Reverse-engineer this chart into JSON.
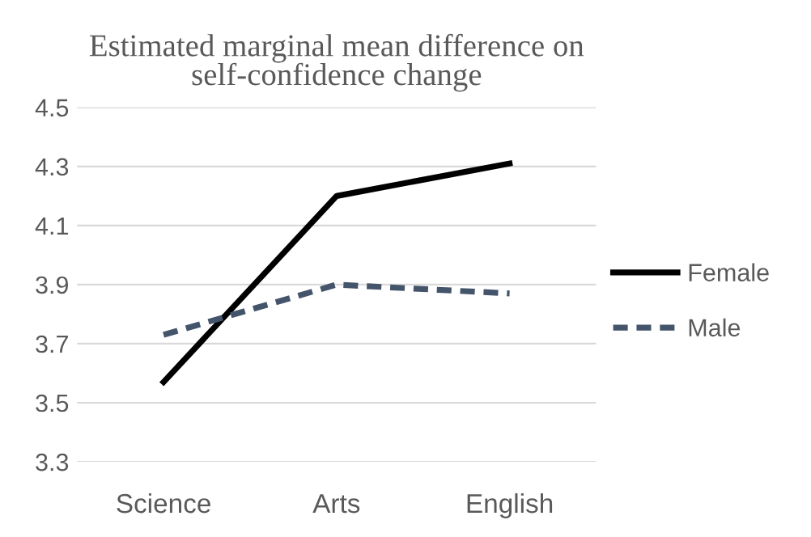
{
  "chart_data": {
    "type": "line",
    "title": "Estimated marginal mean difference on\nself-confidence change",
    "categories": [
      "Science",
      "Arts",
      "English"
    ],
    "series": [
      {
        "name": "Female",
        "color": "#000000",
        "line_style": "solid",
        "values": [
          3.57,
          4.2,
          4.31
        ]
      },
      {
        "name": "Male",
        "color": "#44546a",
        "line_style": "dashed",
        "values": [
          3.73,
          3.9,
          3.87
        ]
      }
    ],
    "ylim": [
      3.3,
      4.5
    ],
    "yticks": [
      3.3,
      3.5,
      3.7,
      3.9,
      4.1,
      4.3,
      4.5
    ],
    "grid": "y",
    "legend": "right",
    "marker": "none"
  }
}
